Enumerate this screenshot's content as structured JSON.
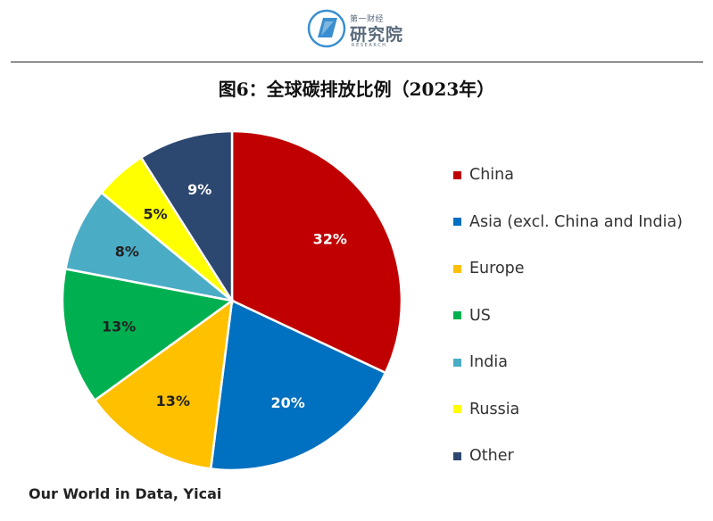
{
  "header": {
    "logo_small": "第一财经",
    "logo_big": "研究院",
    "logo_tiny": "RESEARCH"
  },
  "chart_data": {
    "type": "pie",
    "title": "图6：全球碳排放比例（2023年）",
    "source": "Our World in Data, Yicai",
    "legend_position": "right",
    "slices": [
      {
        "label": "China",
        "value": 32,
        "display": "32%",
        "color": "#C00000",
        "text_color": "#ffffff"
      },
      {
        "label": "Asia (excl. China and India)",
        "value": 20,
        "display": "20%",
        "color": "#0070C0",
        "text_color": "#ffffff"
      },
      {
        "label": "Europe",
        "value": 13,
        "display": "13%",
        "color": "#FFC000",
        "text_color": "#222222"
      },
      {
        "label": "US",
        "value": 13,
        "display": "13%",
        "color": "#00B050",
        "text_color": "#222222"
      },
      {
        "label": "India",
        "value": 8,
        "display": "8%",
        "color": "#4BACC6",
        "text_color": "#222222"
      },
      {
        "label": "Russia",
        "value": 5,
        "display": "5%",
        "color": "#FFFF00",
        "text_color": "#222222"
      },
      {
        "label": "Other",
        "value": 9,
        "display": "9%",
        "color": "#2C4770",
        "text_color": "#ffffff"
      }
    ]
  }
}
